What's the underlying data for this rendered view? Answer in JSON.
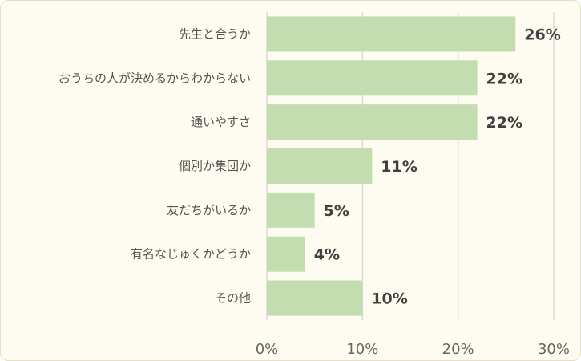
{
  "chart_data": {
    "type": "bar",
    "orientation": "horizontal",
    "categories": [
      "先生と合うか",
      "おうちの人が決めるからわからない",
      "通いやすさ",
      "個別か集団か",
      "友だちがいるか",
      "有名なじゅくかどうか",
      "その他"
    ],
    "values": [
      26,
      22,
      22,
      11,
      5,
      4,
      10
    ],
    "value_labels": [
      "26%",
      "22%",
      "22%",
      "11%",
      "5%",
      "4%",
      "10%"
    ],
    "xlim": [
      0,
      30
    ],
    "ticks": [
      0,
      10,
      20,
      30
    ],
    "tick_labels": [
      "0%",
      "10%",
      "20%",
      "30%"
    ],
    "grid": true,
    "legend": "none"
  },
  "colors": {
    "bar": "#c3dcb0",
    "grid": "#d9d9d9",
    "background": "#fefcf0"
  }
}
